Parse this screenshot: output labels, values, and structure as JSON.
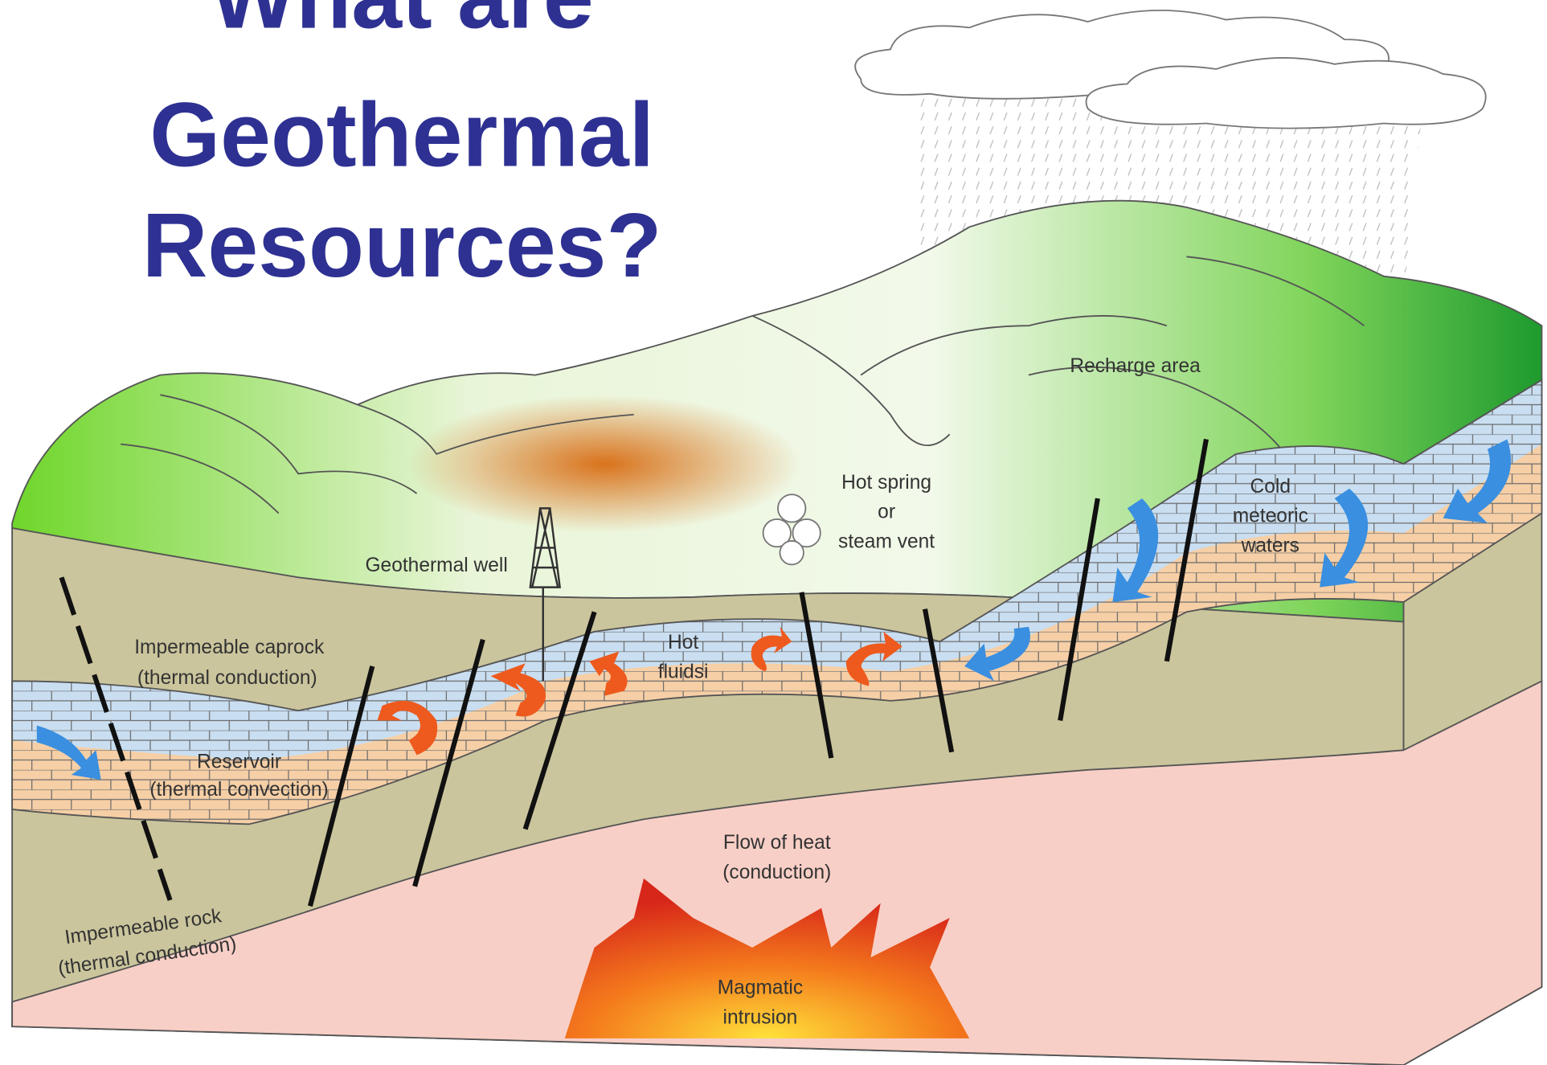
{
  "title": {
    "lines": [
      "What are",
      "Geothermal",
      "Resources?"
    ]
  },
  "labels": {
    "recharge_area": {
      "lines": [
        "Recharge area"
      ]
    },
    "hot_spring": {
      "lines": [
        "Hot spring",
        "or",
        "steam vent"
      ]
    },
    "geothermal_well": {
      "lines": [
        "Geothermal well"
      ]
    },
    "cold_waters": {
      "lines": [
        "Cold",
        "meteoric",
        "waters"
      ]
    },
    "caprock": {
      "lines": [
        "Impermeable caprock",
        "(thermal conduction)"
      ]
    },
    "hot_fluids": {
      "lines": [
        "Hot",
        "fluidsi"
      ]
    },
    "reservoir": {
      "lines": [
        "Reservoir",
        "(thermal convection)"
      ]
    },
    "flow_of_heat": {
      "lines": [
        "Flow of heat",
        "(conduction)"
      ]
    },
    "impermeable_rock": {
      "lines": [
        "Impermeable rock",
        "(thermal conduction)"
      ]
    },
    "magmatic": {
      "lines": [
        "Magmatic",
        "intrusion"
      ]
    }
  }
}
